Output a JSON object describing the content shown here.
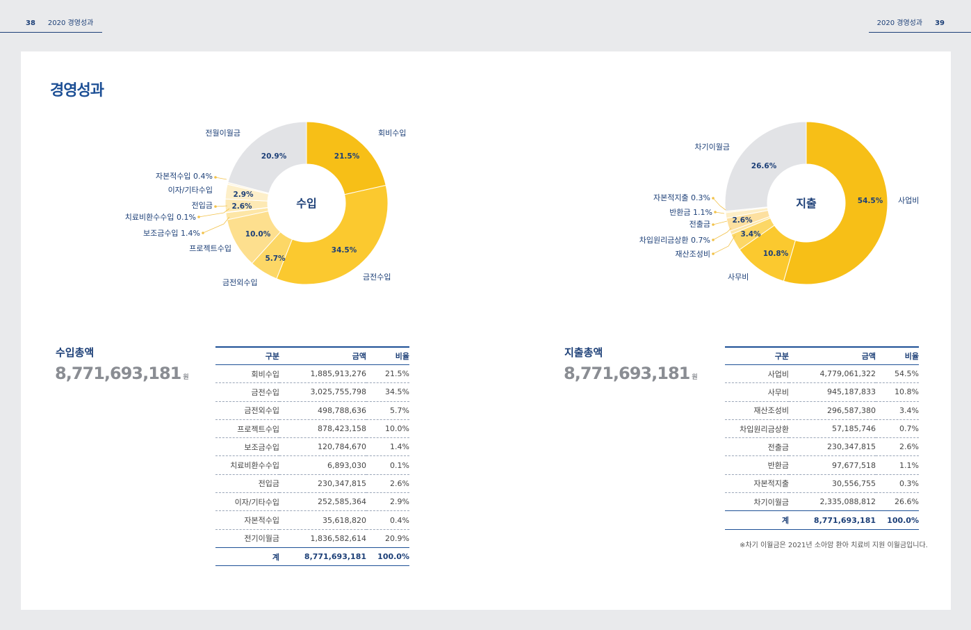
{
  "header": {
    "left_page": "38",
    "left_title": "2020 경영성과",
    "right_title": "2020 경영성과",
    "right_page": "39"
  },
  "title": "경영성과",
  "income": {
    "center_label": "수입",
    "chart_data": {
      "type": "pie",
      "title": "수입",
      "categories": [
        "회비수입",
        "금전수입",
        "금전외수입",
        "프로젝트수입",
        "보조금수입",
        "치료비환수수입",
        "전입금",
        "이자/기타수입",
        "자본적수입",
        "전월이월금"
      ],
      "values": [
        21.5,
        34.5,
        5.7,
        10.0,
        1.4,
        0.1,
        2.6,
        2.9,
        0.4,
        20.9
      ],
      "colors": [
        "#f7bf17",
        "#fbc92f",
        "#fcd766",
        "#fddf8e",
        "#fde6a6",
        "#fff1cf",
        "#fde9b4",
        "#fdefc9",
        "#fef6e2",
        "#e2e3e6"
      ]
    },
    "outer_labels": [
      "회비수입",
      "금전수입",
      "금전외수입",
      "프로젝트수입",
      "보조금수입 1.4%",
      "치료비환수수입 0.1%",
      "전입금",
      "이자/기타수입",
      "자본적수입 0.4%",
      "전월이월금"
    ],
    "inner_labels": [
      "21.5%",
      "34.5%",
      "5.7%",
      "10.0%",
      "2.6%",
      "2.9%",
      "20.9%"
    ],
    "total_label": "수입총액",
    "total_value": "8,771,693,181",
    "total_unit": "원",
    "table": {
      "headers": [
        "구분",
        "금액",
        "비율"
      ],
      "rows": [
        [
          "회비수입",
          "1,885,913,276",
          "21.5%"
        ],
        [
          "금전수입",
          "3,025,755,798",
          "34.5%"
        ],
        [
          "금전외수입",
          "498,788,636",
          "5.7%"
        ],
        [
          "프로젝트수입",
          "878,423,158",
          "10.0%"
        ],
        [
          "보조금수입",
          "120,784,670",
          "1.4%"
        ],
        [
          "치료비환수수입",
          "6,893,030",
          "0.1%"
        ],
        [
          "전입금",
          "230,347,815",
          "2.6%"
        ],
        [
          "이자/기타수입",
          "252,585,364",
          "2.9%"
        ],
        [
          "자본적수입",
          "35,618,820",
          "0.4%"
        ],
        [
          "전기이월금",
          "1,836,582,614",
          "20.9%"
        ]
      ],
      "sum": [
        "계",
        "8,771,693,181",
        "100.0%"
      ]
    }
  },
  "expense": {
    "center_label": "지출",
    "chart_data": {
      "type": "pie",
      "title": "지출",
      "categories": [
        "사업비",
        "사무비",
        "재산조성비",
        "차입원리금상환",
        "전출금",
        "반환금",
        "자본적지출",
        "차기이월금"
      ],
      "values": [
        54.5,
        10.8,
        3.4,
        0.7,
        2.6,
        1.1,
        0.3,
        26.6
      ],
      "colors": [
        "#f7bf17",
        "#fbc92f",
        "#fcd766",
        "#fde6a6",
        "#fde0a0",
        "#fdeec6",
        "#fef6e2",
        "#e2e3e6"
      ]
    },
    "outer_labels": [
      "사업비",
      "사무비",
      "재산조성비",
      "차입원리금상환 0.7%",
      "전출금",
      "반환금 1.1%",
      "자본적지출 0.3%",
      "차기이월금"
    ],
    "inner_labels": [
      "54.5%",
      "10.8%",
      "3.4%",
      "2.6%",
      "26.6%"
    ],
    "total_label": "지출총액",
    "total_value": "8,771,693,181",
    "total_unit": "원",
    "table": {
      "headers": [
        "구분",
        "금액",
        "비율"
      ],
      "rows": [
        [
          "사업비",
          "4,779,061,322",
          "54.5%"
        ],
        [
          "사무비",
          "945,187,833",
          "10.8%"
        ],
        [
          "재산조성비",
          "296,587,380",
          "3.4%"
        ],
        [
          "차입원리금상환",
          "57,185,746",
          "0.7%"
        ],
        [
          "전출금",
          "230,347,815",
          "2.6%"
        ],
        [
          "반환금",
          "97,677,518",
          "1.1%"
        ],
        [
          "자본적지출",
          "30,556,755",
          "0.3%"
        ],
        [
          "차기이월금",
          "2,335,088,812",
          "26.6%"
        ]
      ],
      "sum": [
        "계",
        "8,771,693,181",
        "100.0%"
      ]
    },
    "note": "※차기 이월금은 2021년 소아암 환아 치료비 지원 이월금입니다."
  }
}
